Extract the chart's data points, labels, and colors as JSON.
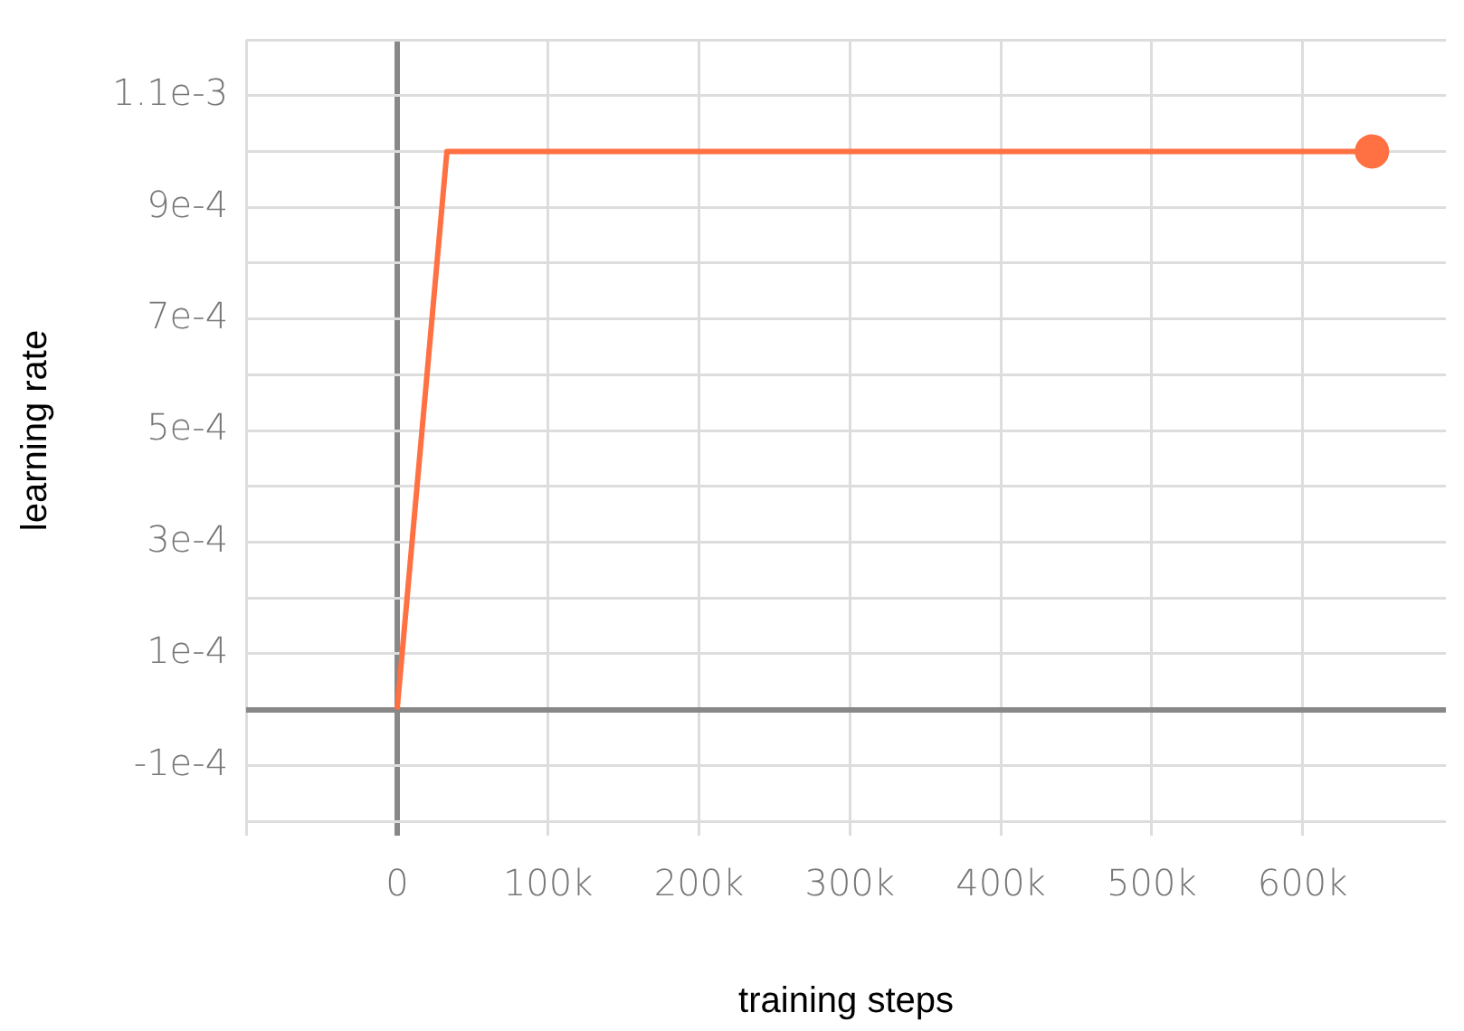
{
  "chart_data": {
    "type": "line",
    "xlabel": "training steps",
    "ylabel": "learning rate",
    "series": [
      {
        "color": "#ff7043",
        "x": [
          0,
          33000,
          646000
        ],
        "values": [
          0,
          0.001,
          0.001
        ]
      },
      {
        "type": "scatter",
        "marker": "circle",
        "color": "#ff7043",
        "x": [
          646000
        ],
        "values": [
          0.001
        ]
      }
    ],
    "xlim": [
      -100000,
      695000
    ],
    "xticks": [
      {
        "value": -100000,
        "label": null
      },
      {
        "value": 0,
        "label": "0"
      },
      {
        "value": 100000,
        "label": "100k"
      },
      {
        "value": 200000,
        "label": "200k"
      },
      {
        "value": 300000,
        "label": "300k"
      },
      {
        "value": 400000,
        "label": "400k"
      },
      {
        "value": 500000,
        "label": "500k"
      },
      {
        "value": 600000,
        "label": "600k"
      }
    ],
    "ylim": [
      -0.0002,
      0.0012
    ],
    "yticks": [
      {
        "value": -0.0002,
        "label": null
      },
      {
        "value": -0.0001,
        "label": "-1e-4"
      },
      {
        "value": 0,
        "label": null
      },
      {
        "value": 0.0001,
        "label": "1e-4"
      },
      {
        "value": 0.0002,
        "label": null
      },
      {
        "value": 0.0003,
        "label": "3e-4"
      },
      {
        "value": 0.0004,
        "label": null
      },
      {
        "value": 0.0005,
        "label": "5e-4"
      },
      {
        "value": 0.0006,
        "label": null
      },
      {
        "value": 0.0007,
        "label": "7e-4"
      },
      {
        "value": 0.0008,
        "label": null
      },
      {
        "value": 0.0009,
        "label": "9e-4"
      },
      {
        "value": 0.001,
        "label": null
      },
      {
        "value": 0.0011,
        "label": "1.1e-3"
      },
      {
        "value": 0.0012,
        "label": null
      }
    ],
    "grid": true,
    "legend": false,
    "marker": "none",
    "line_style": "solid"
  }
}
